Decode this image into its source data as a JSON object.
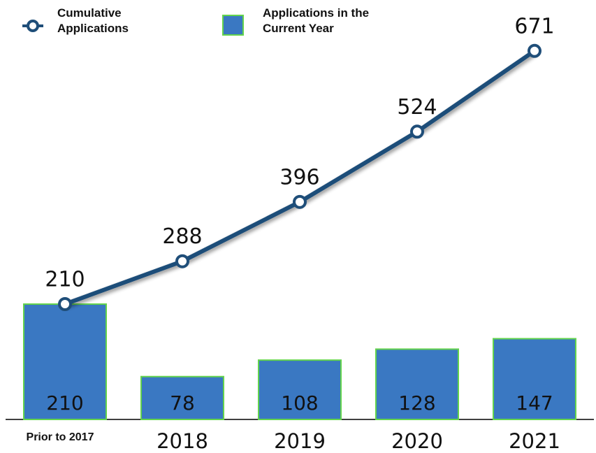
{
  "chart_data": {
    "type": "bar",
    "categories": [
      "Prior to 2017",
      "2018",
      "2019",
      "2020",
      "2021"
    ],
    "series": [
      {
        "name": "Cumulative Applications",
        "type": "line",
        "color": "#1f4e79",
        "values": [
          210,
          288,
          396,
          524,
          671
        ]
      },
      {
        "name": "Applications in the Current Year",
        "type": "bar",
        "color": "#3a78c2",
        "edgecolor": "#63d34c",
        "values": [
          210,
          78,
          108,
          128,
          147
        ]
      }
    ],
    "ylim": [
      0,
      700
    ]
  }
}
